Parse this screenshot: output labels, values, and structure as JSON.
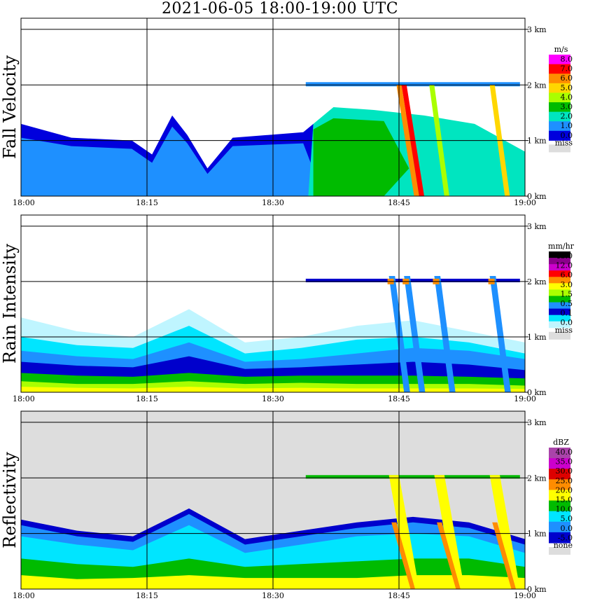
{
  "title": "2021-06-05   18:00-19:00 UTC",
  "chart_data": [
    {
      "type": "heatmap",
      "panel": "Fall Velocity",
      "ylabel": "Fall Velocity",
      "x_ticks": [
        "18:00",
        "18:15",
        "18:30",
        "18:45",
        "19:00"
      ],
      "y_ticks": [
        "0 km",
        "1 km",
        "2 km",
        "3 km"
      ],
      "ylim_km": [
        0,
        3.2
      ],
      "colorbar": {
        "unit": "m/s",
        "labels": [
          "8.0",
          "7.0",
          "6.0",
          "5.0",
          "4.0",
          "3.0",
          "2.0",
          "1.0",
          "0.0"
        ],
        "colors": [
          "#ff00ff",
          "#ff0000",
          "#ff8c00",
          "#ffd700",
          "#aaff00",
          "#00bb00",
          "#00e5c0",
          "#1e90ff",
          "#0000dd"
        ],
        "miss_label": "miss",
        "miss_color": "#dddddd"
      }
    },
    {
      "type": "heatmap",
      "panel": "Rain Intensity",
      "ylabel": "Rain Intensity",
      "x_ticks": [
        "18:00",
        "18:15",
        "18:30",
        "18:45",
        "19:00"
      ],
      "y_ticks": [
        "0 km",
        "1 km",
        "2 km",
        "3 km"
      ],
      "ylim_km": [
        0,
        3.2
      ],
      "colorbar": {
        "unit": "mm/hr",
        "labels": [
          "48.0",
          "12.0",
          "6.0",
          "3.0",
          "1.5",
          "0.5",
          "0.1",
          "0.0"
        ],
        "colors": [
          "#000000",
          "#8b008b",
          "#cc00cc",
          "#ff0000",
          "#ff8c00",
          "#ffff00",
          "#aaff00",
          "#00bb00",
          "#1e90ff",
          "#0000cc",
          "#00e5ff",
          "#bff5ff"
        ],
        "miss_label": "miss",
        "miss_color": "#dddddd"
      }
    },
    {
      "type": "heatmap",
      "panel": "Reflectivity",
      "ylabel": "Reflectivity",
      "x_ticks": [
        "18:00",
        "18:15",
        "18:30",
        "18:45",
        "19:00"
      ],
      "y_ticks": [
        "0 km",
        "1 km",
        "2 km",
        "3 km"
      ],
      "ylim_km": [
        0,
        3.2
      ],
      "colorbar": {
        "unit": "dBZ",
        "labels": [
          "40.0",
          "35.0",
          "30.0",
          "25.0",
          "20.0",
          "15.0",
          "10.0",
          "5.0",
          "0.0",
          "-5.0"
        ],
        "colors": [
          "#aa44aa",
          "#cc00cc",
          "#dd0000",
          "#ff8c00",
          "#ffff00",
          "#00bb00",
          "#00e5ff",
          "#1e90ff",
          "#0000cc"
        ],
        "miss_label": "none",
        "miss_color": "#dddddd"
      }
    }
  ]
}
